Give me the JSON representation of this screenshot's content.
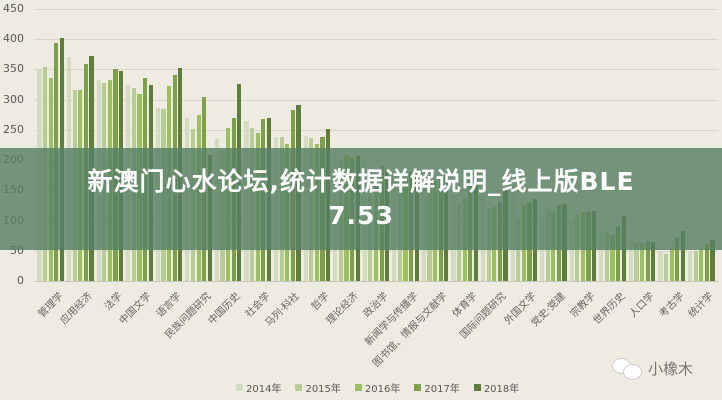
{
  "chart_data": {
    "type": "bar",
    "title": "",
    "xlabel": "",
    "ylabel": "",
    "ylim": [
      0,
      450
    ],
    "yticks": [
      0,
      50,
      100,
      150,
      200,
      250,
      300,
      350,
      400,
      450
    ],
    "grid": true,
    "legend_position": "bottom",
    "categories": [
      "管理学",
      "应用经济",
      "法学",
      "中国文学",
      "语言学",
      "民族问题研究",
      "中国历史",
      "社会学",
      "马列·科社",
      "哲学",
      "理论经济",
      "政治学",
      "新闻学与传播学",
      "图书馆、情报与文献学",
      "体育学",
      "国际问题研究",
      "外国文学",
      "党史·党建",
      "宗教学",
      "世界历史",
      "人口学",
      "考古学",
      "统计学"
    ],
    "series": [
      {
        "name": "2014年",
        "color": "#d3dcc0",
        "values": [
          351,
          370,
          332,
          325,
          286,
          270,
          235,
          265,
          238,
          240,
          208,
          196,
          178,
          175,
          140,
          150,
          155,
          106,
          99,
          80,
          68,
          48,
          50
        ]
      },
      {
        "name": "2015年",
        "color": "#b9cc98",
        "values": [
          354,
          316,
          327,
          320,
          284,
          252,
          217,
          253,
          238,
          237,
          200,
          180,
          176,
          162,
          128,
          120,
          104,
          119,
          109,
          80,
          65,
          45,
          50
        ]
      },
      {
        "name": "2016年",
        "color": "#9cbf62",
        "values": [
          336,
          316,
          332,
          310,
          322,
          275,
          253,
          245,
          227,
          227,
          208,
          172,
          170,
          165,
          138,
          122,
          126,
          116,
          114,
          76,
          63,
          56,
          53
        ]
      },
      {
        "name": "2017年",
        "color": "#7ea04a",
        "values": [
          394,
          359,
          350,
          336,
          341,
          305,
          270,
          268,
          283,
          238,
          204,
          190,
          180,
          170,
          170,
          130,
          130,
          126,
          114,
          91,
          67,
          71,
          61
        ]
      },
      {
        "name": "2018年",
        "color": "#5f7e3b",
        "values": [
          402,
          373,
          348,
          325,
          353,
          208,
          326,
          270,
          292,
          252,
          206,
          185,
          185,
          175,
          180,
          155,
          135,
          128,
          116,
          108,
          65,
          83,
          68
        ]
      }
    ]
  },
  "banner": {
    "line1": "新澳门心水论坛,统计数据详解说明_线上版BLE",
    "line2": "7.53"
  },
  "watermark": {
    "icon": "wechat-icon",
    "text": "小橡木"
  }
}
